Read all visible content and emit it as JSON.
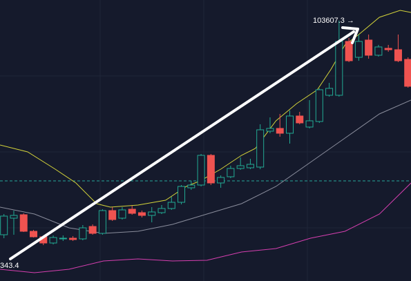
{
  "chart_data": {
    "type": "candlestick",
    "up_color": "#22ab94",
    "down_color": "#ef5350",
    "ylim": [
      74650,
      105900
    ],
    "xlim": [
      -0.4,
      41.3
    ],
    "open": [
      79795,
      81637,
      82021,
      80179,
      79565,
      78874,
      79335,
      79411,
      79335,
      80716,
      79948,
      82482,
      81637,
      82636,
      82252,
      81944,
      82252,
      82712,
      83403,
      85016,
      85323,
      88625,
      85553,
      86244,
      87165,
      87242,
      87319,
      91312,
      91619,
      91081,
      93001,
      91772,
      92387,
      95305,
      95305,
      101293,
      99527,
      101447,
      99758,
      100525,
      100372,
      99297
    ],
    "high": [
      82098,
      82482,
      82175,
      80333,
      79719,
      79719,
      79719,
      79642,
      80870,
      80947,
      82636,
      82866,
      82866,
      83020,
      82482,
      82866,
      83096,
      84017,
      85323,
      85784,
      88778,
      88778,
      86398,
      87473,
      88394,
      88241,
      92080,
      92847,
      93231,
      93615,
      93461,
      94767,
      96072,
      96686,
      103607.3,
      101677,
      102061,
      102061,
      100909,
      100909,
      102061,
      99527
    ],
    "low": [
      79411,
      79795,
      80102,
      79488,
      78643,
      78720,
      79104,
      79104,
      79181,
      79795,
      79795,
      81330,
      81484,
      82021,
      81714,
      81177,
      82098,
      82559,
      83173,
      84785,
      85169,
      85323,
      85016,
      86091,
      87012,
      87089,
      87089,
      91081,
      90698,
      89930,
      92080,
      91619,
      92233,
      95151,
      95151,
      98990,
      99143,
      99374,
      99604,
      100141,
      98990,
      96149
    ],
    "close": [
      81868,
      81944,
      80179,
      79565,
      78874,
      79488,
      79411,
      79258,
      80563,
      79948,
      82482,
      81484,
      82559,
      82175,
      81944,
      82329,
      82712,
      83403,
      85169,
      85323,
      88625,
      85553,
      86167,
      87165,
      87473,
      87626,
      91465,
      91619,
      91081,
      93001,
      92233,
      92463,
      95919,
      96072,
      101293,
      99143,
      101293,
      99758,
      100679,
      100372,
      99143,
      96303
    ],
    "lines": [
      {
        "color": "#d4d43a",
        "x": [
          -0.4,
          2.4,
          5.2,
          7.3,
          9.4,
          10.8,
          13.6,
          16.4,
          18.5,
          19.9,
          22.0,
          24.1,
          25.5,
          27.6,
          29.7,
          31.8,
          33.2,
          34.6,
          36.0,
          38.1,
          40.2,
          41.3
        ],
        "values": [
          89777,
          89009,
          87089,
          85553,
          83250,
          82866,
          83096,
          83634,
          85169,
          85784,
          87089,
          88625,
          89392,
          92463,
          94383,
          95919,
          98222,
          100909,
          102061,
          103981,
          104748,
          104518
        ]
      },
      {
        "color": "#8a8d9c",
        "x": [
          -0.4,
          3.1,
          6.6,
          10.1,
          13.6,
          17.1,
          20.6,
          24.1,
          27.6,
          31.1,
          34.6,
          38.1,
          41.3
        ],
        "values": [
          82866,
          82098,
          80563,
          79948,
          80179,
          80946,
          82098,
          83250,
          85169,
          87857,
          90544,
          93231,
          94767
        ]
      },
      {
        "color": "#d63fb0",
        "x": [
          -0.4,
          3.1,
          6.6,
          10.1,
          13.6,
          17.1,
          20.6,
          24.1,
          27.6,
          31.1,
          34.6,
          38.1,
          41.3
        ],
        "values": [
          75956,
          75572,
          75956,
          76877,
          77108,
          76877,
          76954,
          77875,
          78261,
          79409,
          80179,
          82098,
          85553
        ]
      }
    ],
    "hline": 85784,
    "hline_color": "#26a69a",
    "annotations": [
      "103607.3 →",
      "343.4"
    ]
  }
}
